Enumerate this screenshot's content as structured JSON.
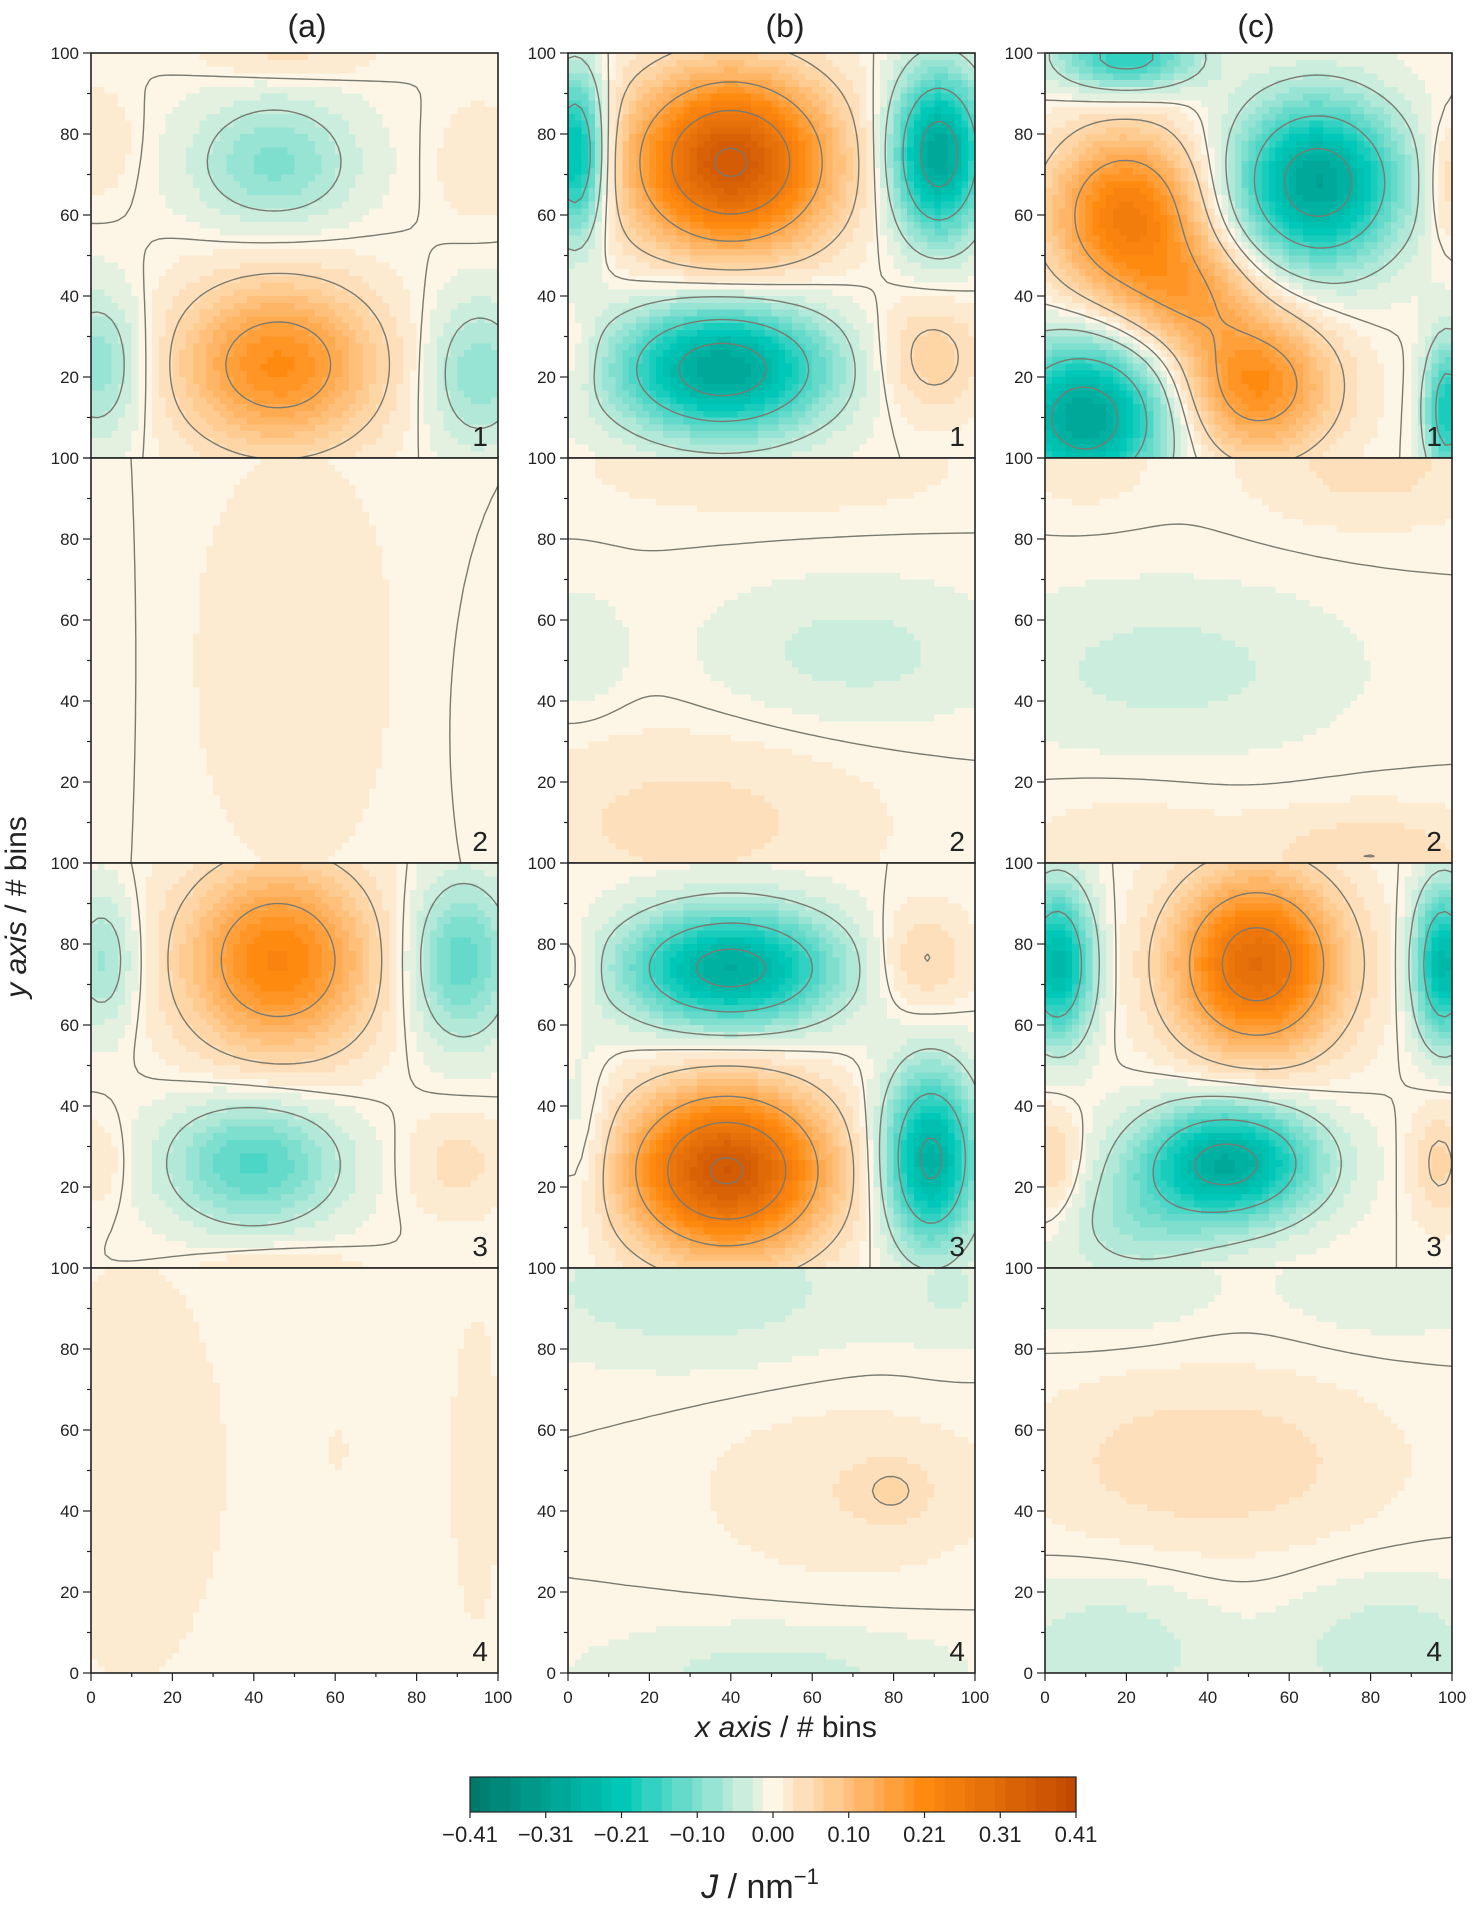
{
  "chart_data": {
    "type": "heatmap",
    "columns": [
      "(a)",
      "(b)",
      "(c)"
    ],
    "row_labels": [
      "1",
      "2",
      "3",
      "4"
    ],
    "xlabel_italic": "x axis",
    "xlabel_rest": " / # bins",
    "ylabel_italic": "y axis",
    "ylabel_rest": " / # bins",
    "x_ticks": [
      "0",
      "20",
      "40",
      "60",
      "80",
      "100"
    ],
    "y_ticks": [
      "0",
      "20",
      "40",
      "60",
      "80",
      "100"
    ],
    "xlim": [
      0,
      100
    ],
    "ylim": [
      0,
      100
    ],
    "colorbar": {
      "min": -0.41,
      "max": 0.41,
      "ticks": [
        "−0.41",
        "−0.31",
        "−0.21",
        "−0.10",
        "0.00",
        "0.10",
        "0.21",
        "0.31",
        "0.41"
      ],
      "label_italic": "J",
      "label_rest": " / nm",
      "label_sup": "−1",
      "colors": [
        "#00786a",
        "#00c8b8",
        "#fdf6e6",
        "#ff8a10",
        "#c04800"
      ]
    },
    "panels": [
      {
        "column": "(a)",
        "row": "1",
        "peaks": [
          {
            "x": 46,
            "y": 23,
            "a": 0.2,
            "sx": 17,
            "sy": 14
          },
          {
            "x": 45,
            "y": 73,
            "a": -0.1,
            "sx": 14,
            "sy": 11
          },
          {
            "x": 2,
            "y": 23,
            "a": -0.09,
            "sx": 8,
            "sy": 13
          },
          {
            "x": 95,
            "y": 21,
            "a": -0.09,
            "sx": 9,
            "sy": 13
          },
          {
            "x": 2,
            "y": 78,
            "a": 0.03,
            "sx": 6,
            "sy": 9
          },
          {
            "x": 95,
            "y": 73,
            "a": 0.03,
            "sx": 7,
            "sy": 10
          },
          {
            "x": 48,
            "y": 99,
            "a": 0.04,
            "sx": 14,
            "sy": 4
          }
        ]
      },
      {
        "column": "(a)",
        "row": "2",
        "peaks": [
          {
            "x": 50,
            "y": 50,
            "a": 0.02,
            "sx": 22,
            "sy": 45
          },
          {
            "x": 5,
            "y": 50,
            "a": -0.005,
            "sx": 10,
            "sy": 40
          },
          {
            "x": 95,
            "y": 40,
            "a": -0.005,
            "sx": 12,
            "sy": 30
          }
        ]
      },
      {
        "column": "(a)",
        "row": "3",
        "peaks": [
          {
            "x": 46,
            "y": 76,
            "a": 0.22,
            "sx": 16,
            "sy": 16
          },
          {
            "x": 40,
            "y": 26,
            "a": -0.14,
            "sx": 15,
            "sy": 11
          },
          {
            "x": 91,
            "y": 76,
            "a": -0.13,
            "sx": 9,
            "sy": 14
          },
          {
            "x": 3,
            "y": 76,
            "a": -0.08,
            "sx": 6,
            "sy": 12
          },
          {
            "x": 90,
            "y": 26,
            "a": 0.04,
            "sx": 9,
            "sy": 9
          },
          {
            "x": 2,
            "y": 26,
            "a": 0.03,
            "sx": 5,
            "sy": 8
          },
          {
            "x": 45,
            "y": 0,
            "a": 0.04,
            "sx": 14,
            "sy": 4
          }
        ]
      },
      {
        "column": "(a)",
        "row": "4",
        "peaks": [
          {
            "x": 10,
            "y": 50,
            "a": 0.02,
            "sx": 18,
            "sy": 45
          },
          {
            "x": 62,
            "y": 55,
            "a": 0.01,
            "sx": 15,
            "sy": 40
          },
          {
            "x": 95,
            "y": 50,
            "a": 0.015,
            "sx": 6,
            "sy": 40
          }
        ]
      },
      {
        "column": "(b)",
        "row": "1",
        "peaks": [
          {
            "x": 40,
            "y": 73,
            "a": 0.36,
            "sx": 17,
            "sy": 15
          },
          {
            "x": 38,
            "y": 22,
            "a": -0.3,
            "sx": 18,
            "sy": 11
          },
          {
            "x": 91,
            "y": 75,
            "a": -0.3,
            "sx": 8,
            "sy": 14
          },
          {
            "x": 2,
            "y": 75,
            "a": -0.25,
            "sx": 5,
            "sy": 14
          },
          {
            "x": 89,
            "y": 25,
            "a": 0.07,
            "sx": 9,
            "sy": 10
          },
          {
            "x": 2,
            "y": 25,
            "a": 0.03,
            "sx": 4,
            "sy": 8
          }
        ]
      },
      {
        "column": "(b)",
        "row": "2",
        "peaks": [
          {
            "x": 30,
            "y": 10,
            "a": 0.04,
            "sx": 30,
            "sy": 15
          },
          {
            "x": 50,
            "y": 98,
            "a": 0.03,
            "sx": 30,
            "sy": 8
          },
          {
            "x": 70,
            "y": 52,
            "a": -0.04,
            "sx": 24,
            "sy": 12
          },
          {
            "x": 2,
            "y": 52,
            "a": -0.03,
            "sx": 8,
            "sy": 10
          }
        ]
      },
      {
        "column": "(b)",
        "row": "3",
        "peaks": [
          {
            "x": 39,
            "y": 24,
            "a": 0.36,
            "sx": 17,
            "sy": 14
          },
          {
            "x": 40,
            "y": 74,
            "a": -0.28,
            "sx": 18,
            "sy": 10
          },
          {
            "x": 89,
            "y": 27,
            "a": -0.27,
            "sx": 8,
            "sy": 15
          },
          {
            "x": 87,
            "y": 76,
            "a": 0.06,
            "sx": 8,
            "sy": 9
          },
          {
            "x": 2,
            "y": 74,
            "a": 0.03,
            "sx": 4,
            "sy": 8
          },
          {
            "x": 4,
            "y": 30,
            "a": -0.04,
            "sx": 5,
            "sy": 15
          }
        ]
      },
      {
        "column": "(b)",
        "row": "4",
        "peaks": [
          {
            "x": 30,
            "y": 95,
            "a": -0.05,
            "sx": 30,
            "sy": 12
          },
          {
            "x": 95,
            "y": 95,
            "a": -0.03,
            "sx": 10,
            "sy": 10
          },
          {
            "x": 70,
            "y": 45,
            "a": 0.03,
            "sx": 24,
            "sy": 14
          },
          {
            "x": 80,
            "y": 45,
            "a": 0.03,
            "sx": 6,
            "sy": 5
          },
          {
            "x": 50,
            "y": 0,
            "a": -0.04,
            "sx": 30,
            "sy": 8
          }
        ]
      },
      {
        "column": "(c)",
        "row": "1",
        "peaks": [
          {
            "x": 20,
            "y": 60,
            "a": 0.24,
            "sx": 13,
            "sy": 14
          },
          {
            "x": 52,
            "y": 18,
            "a": 0.2,
            "sx": 13,
            "sy": 12
          },
          {
            "x": 36,
            "y": 40,
            "a": 0.12,
            "sx": 12,
            "sy": 10
          },
          {
            "x": 67,
            "y": 68,
            "a": -0.3,
            "sx": 14,
            "sy": 14
          },
          {
            "x": 10,
            "y": 10,
            "a": -0.3,
            "sx": 14,
            "sy": 13
          },
          {
            "x": 20,
            "y": 99,
            "a": -0.18,
            "sx": 12,
            "sy": 6
          },
          {
            "x": 99,
            "y": 12,
            "a": -0.2,
            "sx": 4,
            "sy": 12
          },
          {
            "x": 99,
            "y": 68,
            "a": 0.06,
            "sx": 4,
            "sy": 10
          }
        ]
      },
      {
        "column": "(c)",
        "row": "2",
        "peaks": [
          {
            "x": 30,
            "y": 48,
            "a": -0.04,
            "sx": 30,
            "sy": 14
          },
          {
            "x": 80,
            "y": 98,
            "a": 0.04,
            "sx": 20,
            "sy": 10
          },
          {
            "x": 10,
            "y": 98,
            "a": 0.02,
            "sx": 12,
            "sy": 8
          },
          {
            "x": 80,
            "y": 2,
            "a": 0.05,
            "sx": 20,
            "sy": 8
          },
          {
            "x": 20,
            "y": 5,
            "a": 0.02,
            "sx": 20,
            "sy": 10
          }
        ]
      },
      {
        "column": "(c)",
        "row": "3",
        "peaks": [
          {
            "x": 52,
            "y": 75,
            "a": 0.3,
            "sx": 14,
            "sy": 15
          },
          {
            "x": 45,
            "y": 26,
            "a": -0.28,
            "sx": 15,
            "sy": 10
          },
          {
            "x": 3,
            "y": 75,
            "a": -0.25,
            "sx": 6,
            "sy": 13
          },
          {
            "x": 98,
            "y": 75,
            "a": -0.25,
            "sx": 5,
            "sy": 13
          },
          {
            "x": 2,
            "y": 26,
            "a": 0.06,
            "sx": 5,
            "sy": 10
          },
          {
            "x": 97,
            "y": 26,
            "a": 0.06,
            "sx": 5,
            "sy": 10
          },
          {
            "x": 22,
            "y": 10,
            "a": -0.06,
            "sx": 14,
            "sy": 10
          }
        ]
      },
      {
        "column": "(c)",
        "row": "4",
        "peaks": [
          {
            "x": 40,
            "y": 52,
            "a": 0.05,
            "sx": 28,
            "sy": 14
          },
          {
            "x": 15,
            "y": 95,
            "a": -0.03,
            "sx": 18,
            "sy": 8
          },
          {
            "x": 85,
            "y": 95,
            "a": -0.03,
            "sx": 18,
            "sy": 8
          },
          {
            "x": 15,
            "y": 5,
            "a": -0.05,
            "sx": 18,
            "sy": 12
          },
          {
            "x": 85,
            "y": 5,
            "a": -0.05,
            "sx": 18,
            "sy": 12
          }
        ]
      }
    ]
  }
}
